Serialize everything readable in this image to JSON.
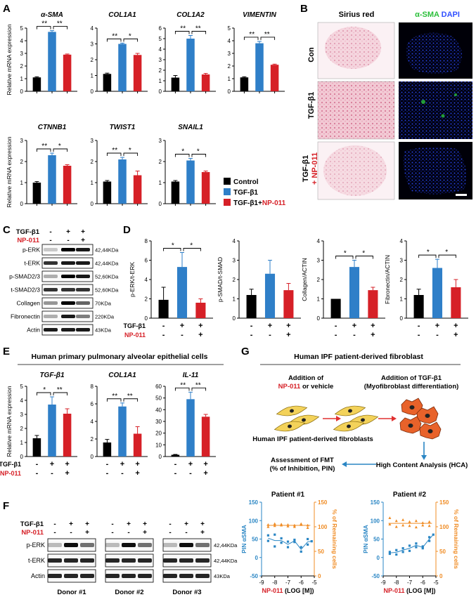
{
  "colors": {
    "control": "#000000",
    "tgf": "#2f7fc8",
    "np": "#d62027",
    "np_text": "#d62027",
    "gfp": "#2bbf3a",
    "dapi": "#3050ff",
    "pin": "#2a86c4",
    "remaining": "#f08c24"
  },
  "panels": {
    "A": "A",
    "B": "B",
    "C": "C",
    "D": "D",
    "E": "E",
    "F": "F",
    "G": "G"
  },
  "common": {
    "rel_mrna": "Relative mRNA expression",
    "tgf": "TGF-β1",
    "np": "NP-011",
    "sig2": "**",
    "sig1": "*",
    "plus": "+",
    "minus": "-"
  },
  "legend": {
    "items": [
      {
        "label": "Control",
        "color": "#000000"
      },
      {
        "label": "TGF-β1",
        "color": "#2f7fc8"
      },
      {
        "label_prefix": "TGF-β1+",
        "label_np": "NP-011",
        "color": "#d62027"
      }
    ]
  },
  "chart_data": [
    {
      "type": "bar",
      "panel": "A",
      "title": "α-SMA",
      "categories": [
        "Control",
        "TGF-β1",
        "TGF-β1+NP-011"
      ],
      "values": [
        1.1,
        4.7,
        2.9
      ],
      "errors": [
        0.05,
        0.1,
        0.05
      ],
      "ylim": [
        0,
        5
      ],
      "ticks": [
        0,
        1,
        2,
        3,
        4,
        5
      ],
      "ylabel": "Relative mRNA expression",
      "sig": [
        "**",
        "**"
      ]
    },
    {
      "type": "bar",
      "panel": "A",
      "title": "COL1A1",
      "categories": [
        "Control",
        "TGF-β1",
        "TGF-β1+NP-011"
      ],
      "values": [
        1.1,
        3.0,
        2.3
      ],
      "errors": [
        0.05,
        0.05,
        0.1
      ],
      "ylim": [
        0,
        4
      ],
      "ticks": [
        0,
        1,
        2,
        3,
        4
      ],
      "sig": [
        "**",
        "*"
      ]
    },
    {
      "type": "bar",
      "panel": "A",
      "title": "COL1A2",
      "categories": [
        "Control",
        "TGF-β1",
        "TGF-β1+NP-011"
      ],
      "values": [
        1.3,
        5.0,
        1.6
      ],
      "errors": [
        0.2,
        0.3,
        0.1
      ],
      "ylim": [
        0,
        6
      ],
      "ticks": [
        0,
        1,
        2,
        3,
        4,
        5,
        6
      ],
      "sig": [
        "**",
        "**"
      ]
    },
    {
      "type": "bar",
      "panel": "A",
      "title": "VIMENTIN",
      "categories": [
        "Control",
        "TGF-β1",
        "TGF-β1+NP-011"
      ],
      "values": [
        1.1,
        3.8,
        2.1
      ],
      "errors": [
        0.05,
        0.15,
        0.05
      ],
      "ylim": [
        0,
        5
      ],
      "ticks": [
        0,
        1,
        2,
        3,
        4,
        5
      ],
      "sig": [
        "**",
        "**"
      ]
    },
    {
      "type": "bar",
      "panel": "A",
      "title": "CTNNB1",
      "categories": [
        "Control",
        "TGF-β1",
        "TGF-β1+NP-011"
      ],
      "values": [
        1.0,
        2.3,
        1.8
      ],
      "errors": [
        0.05,
        0.1,
        0.05
      ],
      "ylim": [
        0,
        3
      ],
      "ticks": [
        0,
        1,
        2,
        3
      ],
      "ylabel": "Relative mRNA expression",
      "sig": [
        "**",
        "*"
      ]
    },
    {
      "type": "bar",
      "panel": "A",
      "title": "TWIST1",
      "categories": [
        "Control",
        "TGF-β1",
        "TGF-β1+NP-011"
      ],
      "values": [
        1.05,
        2.1,
        1.35
      ],
      "errors": [
        0.05,
        0.1,
        0.2
      ],
      "ylim": [
        0,
        3
      ],
      "ticks": [
        0,
        1,
        2,
        3
      ],
      "sig": [
        "**",
        "*"
      ]
    },
    {
      "type": "bar",
      "panel": "A",
      "title": "SNAIL1",
      "categories": [
        "Control",
        "TGF-β1",
        "TGF-β1+NP-011"
      ],
      "values": [
        1.05,
        2.05,
        1.5
      ],
      "errors": [
        0.05,
        0.1,
        0.05
      ],
      "ylim": [
        0,
        3
      ],
      "ticks": [
        0,
        1,
        2,
        3
      ],
      "sig": [
        "*",
        "*"
      ]
    },
    {
      "type": "bar",
      "panel": "D",
      "categories": [
        "Control",
        "TGF-β1",
        "TGF-β1+NP-011"
      ],
      "values": [
        1.9,
        5.3,
        1.6
      ],
      "errors": [
        1.3,
        1.5,
        0.4
      ],
      "ylim": [
        0,
        8
      ],
      "ticks": [
        0,
        2,
        4,
        6,
        8
      ],
      "ylabel": "p-ERK/t-ERK",
      "sig": [
        "*",
        "*"
      ]
    },
    {
      "type": "bar",
      "panel": "D",
      "categories": [
        "Control",
        "TGF-β1",
        "TGF-β1+NP-011"
      ],
      "values": [
        1.2,
        2.3,
        1.45
      ],
      "errors": [
        0.3,
        0.7,
        0.35
      ],
      "ylim": [
        0,
        4
      ],
      "ticks": [
        0,
        1,
        2,
        3,
        4
      ],
      "ylabel": "p-SMAD/t-SMAD",
      "sig": []
    },
    {
      "type": "bar",
      "panel": "D",
      "categories": [
        "Control",
        "TGF-β1",
        "TGF-β1+NP-011"
      ],
      "values": [
        1.0,
        2.65,
        1.45
      ],
      "errors": [
        0.0,
        0.35,
        0.15
      ],
      "ylim": [
        0,
        4
      ],
      "ticks": [
        0,
        1,
        2,
        3,
        4
      ],
      "ylabel": "Collagen/ACTIN",
      "sig": [
        "*",
        "*"
      ]
    },
    {
      "type": "bar",
      "panel": "D",
      "categories": [
        "Control",
        "TGF-β1",
        "TGF-β1+NP-011"
      ],
      "values": [
        1.2,
        2.6,
        1.6
      ],
      "errors": [
        0.3,
        0.45,
        0.4
      ],
      "ylim": [
        0,
        4
      ],
      "ticks": [
        0,
        1,
        2,
        3,
        4
      ],
      "ylabel": "Fibronectin/ACTIN",
      "sig": [
        "*",
        "*"
      ]
    },
    {
      "type": "bar",
      "panel": "E",
      "title": "TGF-β1",
      "categories": [
        "Control",
        "TGF-β1",
        "TGF-β1+NP-011"
      ],
      "values": [
        1.3,
        3.7,
        3.05
      ],
      "errors": [
        0.2,
        0.55,
        0.35
      ],
      "ylim": [
        0,
        5
      ],
      "ticks": [
        0,
        1,
        2,
        3,
        4,
        5
      ],
      "ylabel": "Relative mRNA expression",
      "sig": [
        "*",
        "**"
      ]
    },
    {
      "type": "bar",
      "panel": "E",
      "title": "COL1A1",
      "categories": [
        "Control",
        "TGF-β1",
        "TGF-β1+NP-011"
      ],
      "values": [
        1.6,
        5.7,
        2.6
      ],
      "errors": [
        0.35,
        0.4,
        0.8
      ],
      "ylim": [
        0,
        8
      ],
      "ticks": [
        0,
        2,
        4,
        6,
        8
      ],
      "sig": [
        "**",
        "**"
      ]
    },
    {
      "type": "bar",
      "panel": "E",
      "title": "IL-11",
      "categories": [
        "Control",
        "TGF-β1",
        "TGF-β1+NP-011"
      ],
      "values": [
        1.5,
        49,
        34
      ],
      "errors": [
        0.3,
        6,
        2
      ],
      "ylim": [
        0,
        60
      ],
      "ticks": [
        0,
        10,
        20,
        30,
        40,
        50,
        60
      ],
      "sig": [
        "**",
        "**"
      ]
    },
    {
      "type": "scatter",
      "panel": "G",
      "title": "Patient #1",
      "xlabel_np": "NP-011",
      "xlabel_rest": " (LOG [M])",
      "ylabel_left": "PIN αSMA",
      "ylabel_right": "% of Remaining cells",
      "xlim": [
        -9,
        -5
      ],
      "xticks": [
        -9,
        -8,
        -7,
        -6,
        -5
      ],
      "ylim_left": [
        -50,
        150
      ],
      "yticks_left": [
        -50,
        0,
        50,
        100,
        150
      ],
      "ylim_right": [
        0,
        150
      ],
      "yticks_right": [
        0,
        50,
        100,
        150
      ],
      "series": [
        {
          "name": "PIN αSMA",
          "color": "#2a86c4",
          "x": [
            -8.5,
            -8.5,
            -8,
            -8,
            -7.5,
            -7.5,
            -7,
            -7,
            -6.5,
            -6.5,
            -6,
            -6,
            -5.5,
            -5.5,
            -5.2
          ],
          "y": [
            60,
            45,
            62,
            30,
            52,
            40,
            43,
            28,
            48,
            42,
            28,
            16,
            35,
            50,
            44
          ]
        },
        {
          "name": "% of Remaining cells",
          "color": "#f08c24",
          "x": [
            -8.5,
            -8.5,
            -8,
            -8,
            -7.5,
            -7.5,
            -7,
            -7,
            -6.5,
            -6.5,
            -6,
            -6,
            -5.5,
            -5.5
          ],
          "y": [
            104,
            100,
            106,
            102,
            105,
            103,
            104,
            101,
            103,
            100,
            106,
            104,
            103,
            98
          ]
        }
      ]
    },
    {
      "type": "scatter",
      "panel": "G",
      "title": "Patient #2",
      "xlabel_np": "NP-011",
      "xlabel_rest": " (LOG [M])",
      "ylabel_left": "PIN αSMA",
      "ylabel_right": "% of Remaining cells",
      "xlim": [
        -9,
        -5
      ],
      "xticks": [
        -9,
        -8,
        -7,
        -6,
        -5
      ],
      "ylim_left": [
        -50,
        150
      ],
      "yticks_left": [
        -50,
        0,
        50,
        100,
        150
      ],
      "ylim_right": [
        0,
        150
      ],
      "yticks_right": [
        0,
        50,
        100,
        150
      ],
      "series": [
        {
          "name": "PIN αSMA",
          "color": "#2a86c4",
          "x": [
            -8.5,
            -8.5,
            -8,
            -8,
            -7.5,
            -7.5,
            -7,
            -7,
            -6.5,
            -6.5,
            -6,
            -6,
            -5.5,
            -5.5,
            -5.2
          ],
          "y": [
            15,
            10,
            20,
            8,
            25,
            15,
            32,
            18,
            38,
            28,
            30,
            25,
            45,
            55,
            62
          ]
        },
        {
          "name": "% of Remaining cells",
          "color": "#f08c24",
          "x": [
            -8.5,
            -8.5,
            -8,
            -8,
            -7.5,
            -7.5,
            -7,
            -7,
            -6.5,
            -6.5,
            -6,
            -6,
            -5.5,
            -5.5
          ],
          "y": [
            118,
            105,
            112,
            100,
            114,
            103,
            110,
            102,
            112,
            99,
            108,
            103,
            110,
            102
          ]
        }
      ]
    }
  ],
  "B": {
    "col1": "Sirius red",
    "col2_a": "α-SMA",
    "col2_b": "DAPI",
    "rows": [
      "Con",
      "TGF-β1",
      "TGF-β1"
    ],
    "row3_np": "+ NP-011"
  },
  "C": {
    "rows": [
      {
        "label": "p-ERK",
        "kda": "42,44KDa"
      },
      {
        "label": "t-ERK",
        "kda": "42,44KDa"
      },
      {
        "label": "p-SMAD2/3",
        "kda": "52,60KDa"
      },
      {
        "label": "t-SMAD2/3",
        "kda": "52,60KDa"
      },
      {
        "label": "Collagen",
        "kda": "70KDa"
      },
      {
        "label": "Fibronectin",
        "kda": "220KDa"
      },
      {
        "label": "Actin",
        "kda": "43KDa"
      }
    ],
    "tgf_signs": [
      "-",
      "+",
      "+"
    ],
    "np_signs": [
      "-",
      "-",
      "+"
    ]
  },
  "E": {
    "title": "Human primary pulmonary alveolar epithelial cells"
  },
  "F": {
    "donors": [
      "Donor #1",
      "Donor #2",
      "Donor #3"
    ],
    "rows": [
      {
        "label": "p-ERK",
        "kda": "42,44KDa"
      },
      {
        "label": "t-ERK",
        "kda": "42,44KDa"
      },
      {
        "label": "Actin",
        "kda": "43KDa"
      }
    ],
    "tgf_signs": [
      "-",
      "+",
      "+"
    ],
    "np_signs": [
      "-",
      "-",
      "+"
    ]
  },
  "G": {
    "title": "Human IPF patient-derived fibroblast",
    "step1_a": "Addition of",
    "step1_np": "NP-011",
    "step1_b": " or vehicle",
    "step2_a": "Addition of TGF-β1",
    "step2_b": "(Myofibroblast differentiation)",
    "cells_label": "Human IPF patient-derived fibroblasts",
    "assess_a": "Assessment of FMT",
    "assess_b": "(% of Inhibition, PIN)",
    "hca": "High Content Analysis (HCA)"
  }
}
